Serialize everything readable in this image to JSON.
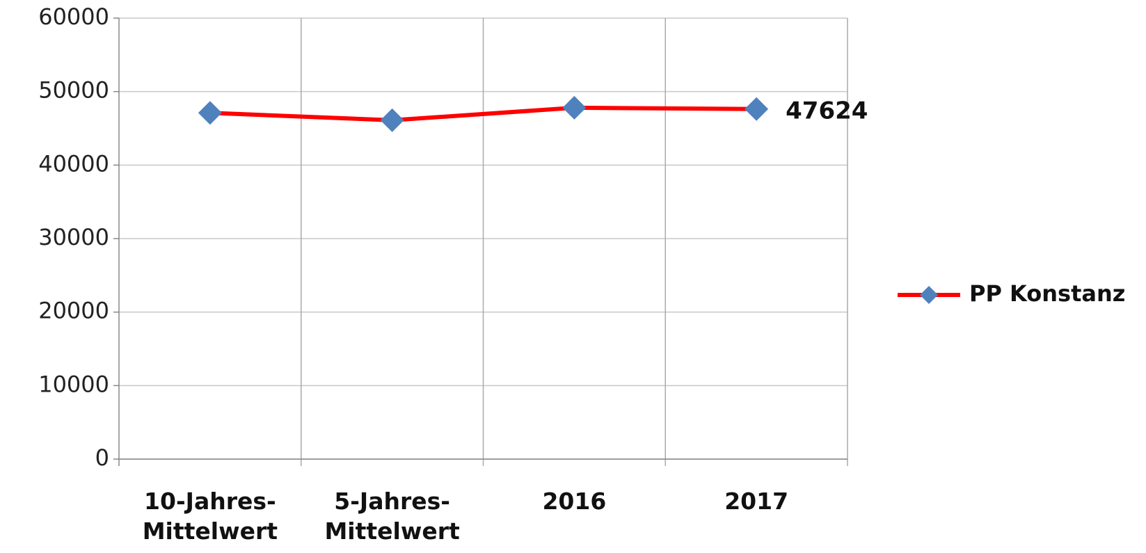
{
  "chart_data": {
    "type": "line",
    "categories": [
      "10-Jahres-Mittelwert",
      "5-Jahres-Mittelwert",
      "2016",
      "2017"
    ],
    "series": [
      {
        "name": "PP Konstanz",
        "color": "#ff0000",
        "marker_color": "#4f81bd",
        "values": [
          47100,
          46100,
          47800,
          47624
        ]
      }
    ],
    "data_label_index": 3,
    "ylim": [
      0,
      60000
    ],
    "yticks": [
      0,
      10000,
      20000,
      30000,
      40000,
      50000,
      60000
    ],
    "grid": true,
    "legend": "right"
  }
}
